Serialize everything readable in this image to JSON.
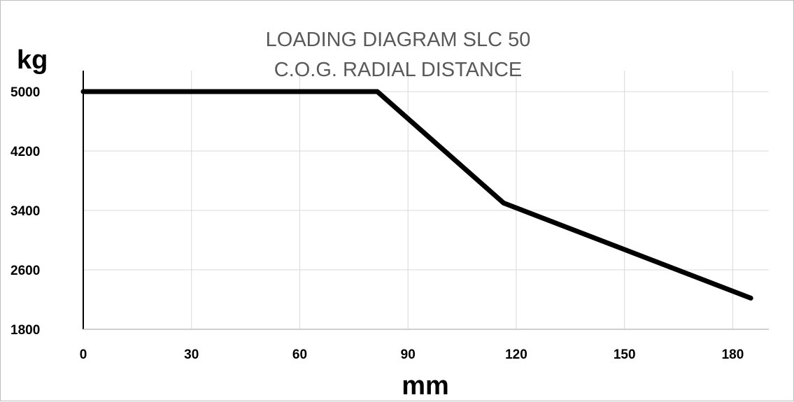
{
  "chart_data": {
    "type": "line",
    "title": "LOADING DIAGRAM SLC 50",
    "subtitle": "C.O.G. RADIAL DISTANCE",
    "xlabel": "mm",
    "ylabel": "kg",
    "xlim": [
      0,
      190
    ],
    "ylim": [
      1800,
      5000
    ],
    "x_ticks": [
      0,
      30,
      60,
      90,
      120,
      150,
      180
    ],
    "y_ticks": [
      1800,
      2600,
      3400,
      4200,
      5000
    ],
    "grid": true,
    "legend": "none",
    "series": [
      {
        "x": [
          0,
          81.5,
          116.5,
          185
        ],
        "y": [
          5000,
          5000,
          3500,
          2220
        ]
      }
    ],
    "colors": {
      "line": "#000000",
      "grid": "#d9d9d9",
      "title": "#595959",
      "axis": "#000000"
    }
  }
}
